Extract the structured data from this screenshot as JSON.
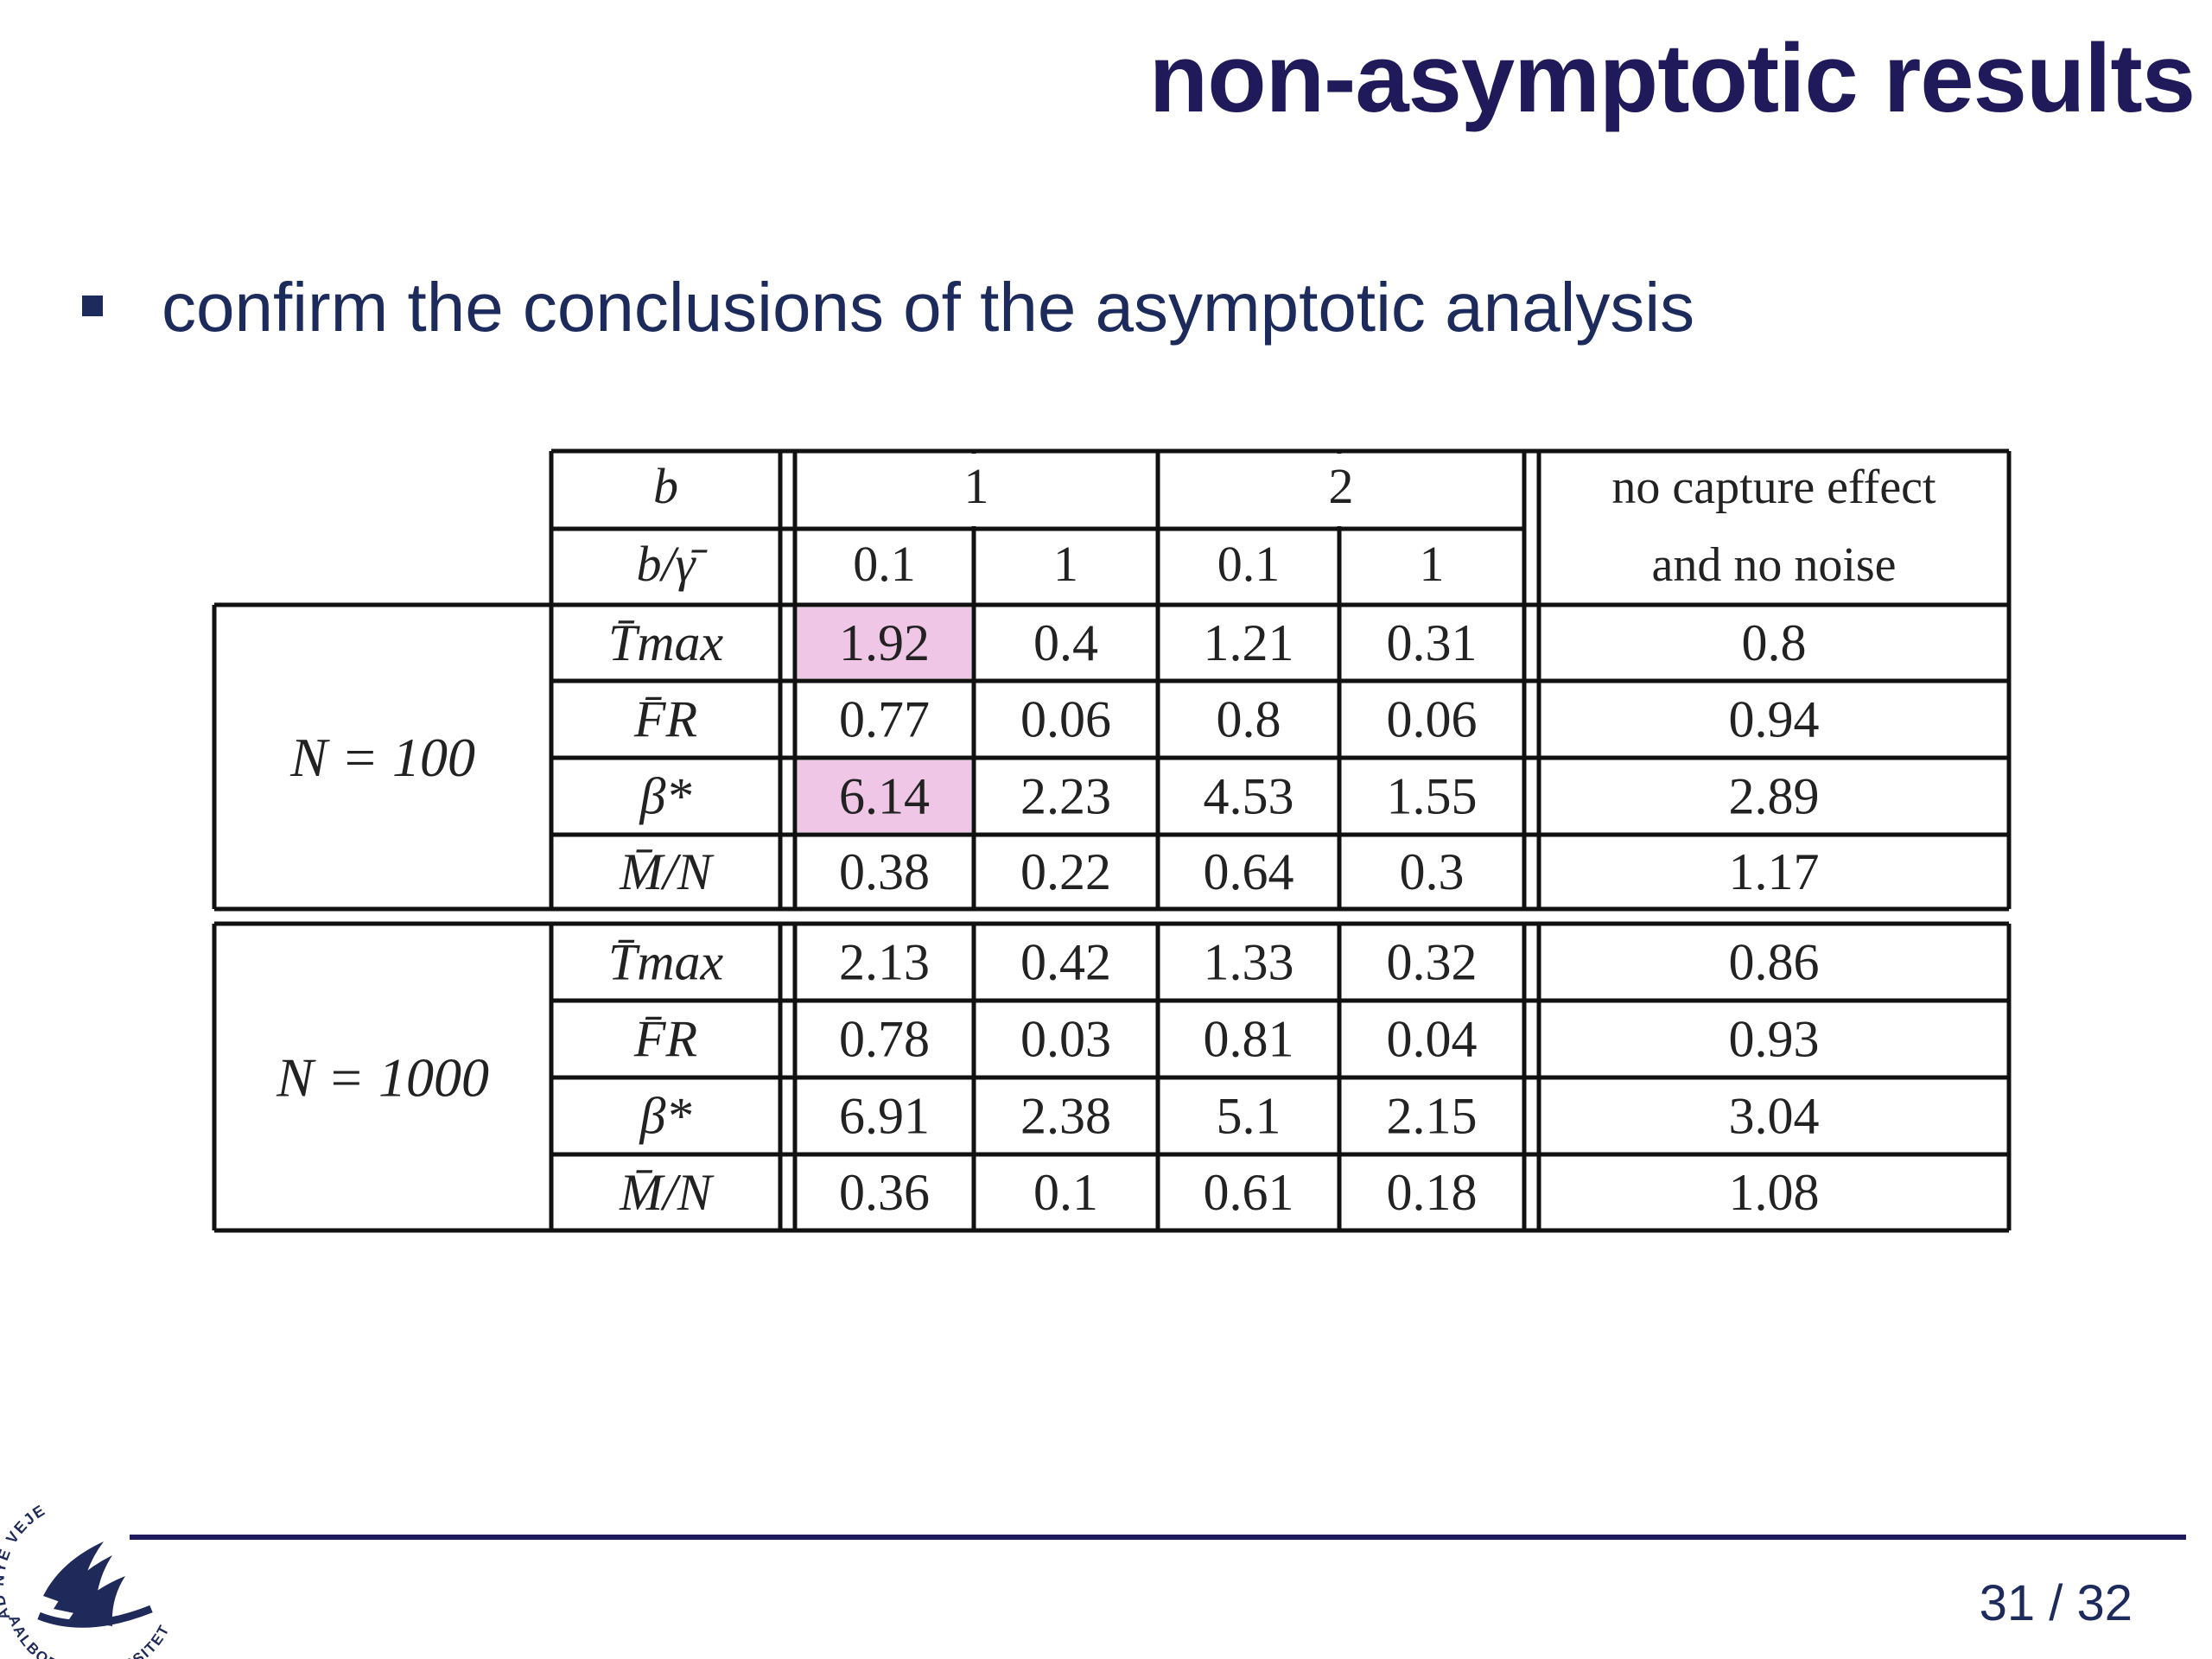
{
  "slide": {
    "title": "non-asymptotic results",
    "bullets": [
      "confirm the conclusions of the asymptotic analysis"
    ],
    "page_current": "31",
    "page_total": "32",
    "page_separator": "/"
  },
  "table": {
    "header_b_label": "b",
    "header_ratio_label": "b/γ̄",
    "b_values": [
      "1",
      "2"
    ],
    "ratio_values": [
      "0.1",
      "1",
      "0.1",
      "1"
    ],
    "extra_column": [
      "no capture effect",
      "and no noise"
    ],
    "groups": [
      {
        "label": "N = 100",
        "rows": [
          {
            "metric": "T̄max",
            "values": [
              "1.92",
              "0.4",
              "1.21",
              "0.31"
            ],
            "extra": "0.8"
          },
          {
            "metric": "F̄R",
            "values": [
              "0.77",
              "0.06",
              "0.8",
              "0.06"
            ],
            "extra": "0.94"
          },
          {
            "metric": "β*",
            "values": [
              "6.14",
              "2.23",
              "4.53",
              "1.55"
            ],
            "extra": "2.89"
          },
          {
            "metric": "M̄/N",
            "values": [
              "0.38",
              "0.22",
              "0.64",
              "0.3"
            ],
            "extra": "1.17"
          }
        ]
      },
      {
        "label": "N = 1000",
        "rows": [
          {
            "metric": "T̄max",
            "values": [
              "2.13",
              "0.42",
              "1.33",
              "0.32"
            ],
            "extra": "0.86"
          },
          {
            "metric": "F̄R",
            "values": [
              "0.78",
              "0.03",
              "0.81",
              "0.04"
            ],
            "extra": "0.93"
          },
          {
            "metric": "β*",
            "values": [
              "6.91",
              "2.38",
              "5.1",
              "2.15"
            ],
            "extra": "3.04"
          },
          {
            "metric": "M̄/N",
            "values": [
              "0.36",
              "0.1",
              "0.61",
              "0.18"
            ],
            "extra": "1.08"
          }
        ]
      }
    ],
    "highlight_color": "#efc6e6"
  },
  "logo": {
    "text_top": "AD NYE VEJE",
    "text_bottom": "AALBORG UNIVERSITET",
    "icon": "aau-swan-logo"
  }
}
